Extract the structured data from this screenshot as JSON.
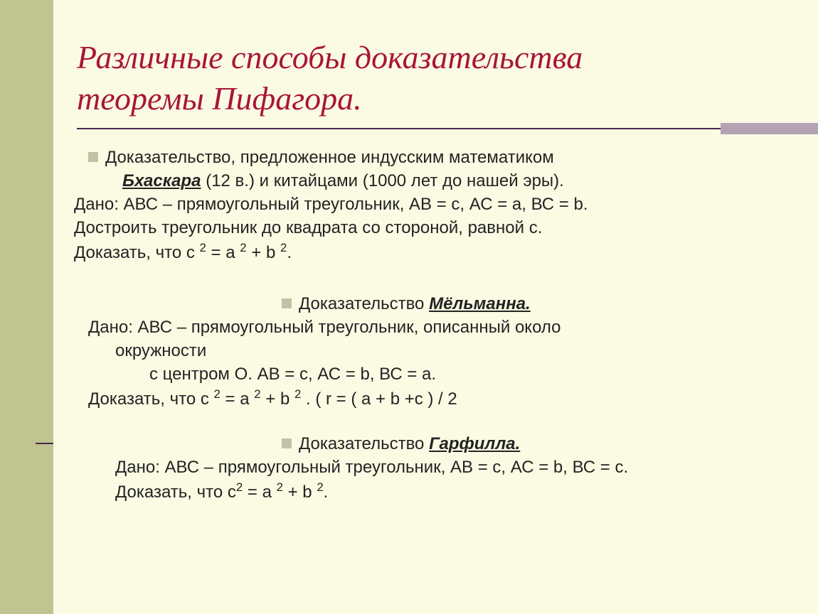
{
  "colors": {
    "background": "#fbfbe4",
    "sidebar": "#c0c490",
    "accent_bar": "#b4a3b4",
    "divider": "#4b284b",
    "title": "#a91538",
    "body_text": "#232323",
    "bullet": "#c1c3a6"
  },
  "title": "Различные способы доказательства теоремы Пифагора.",
  "section1": {
    "intro_pre": "Доказательство, предложенное индусским математиком",
    "author": "Бхаскара",
    "intro_post": " (12 в.) и китайцами (1000 лет до нашей эры).",
    "given": " Дано: АВС – прямоугольный треугольник,   АВ = с, АС = а, ВС = b.",
    "construct": "Достроить треугольник до квадрата со стороной, равной с.",
    "prove_label": "Доказать, что с ",
    "prove_eq_a": " = а ",
    "prove_eq_b": " + b ",
    "prove_end": "."
  },
  "section2": {
    "heading_pre": "Доказательство ",
    "author": "Мёльманна.",
    "given1": " Дано: АВС – прямоугольный треугольник, описанный около",
    "given2": "окружности",
    "given3": "с центром О.    АВ = с, АС = b, ВС = а.",
    "prove_label": " Доказать, что с ",
    "prove_eq_a": " = а ",
    "prove_eq_b": " + b ",
    "prove_mid": " .    ( r = ( а + b +с ) / 2"
  },
  "section3": {
    "heading_pre": "Доказательство ",
    "author": "Гарфилла.",
    "given": "Дано: АВС – прямоугольный треугольник,   АВ = с, АС = b, ВС = с.",
    "prove_label": "Доказать, что с",
    "prove_eq_a": " = а ",
    "prove_eq_b": " + b ",
    "prove_end": "."
  },
  "exp2": "2"
}
